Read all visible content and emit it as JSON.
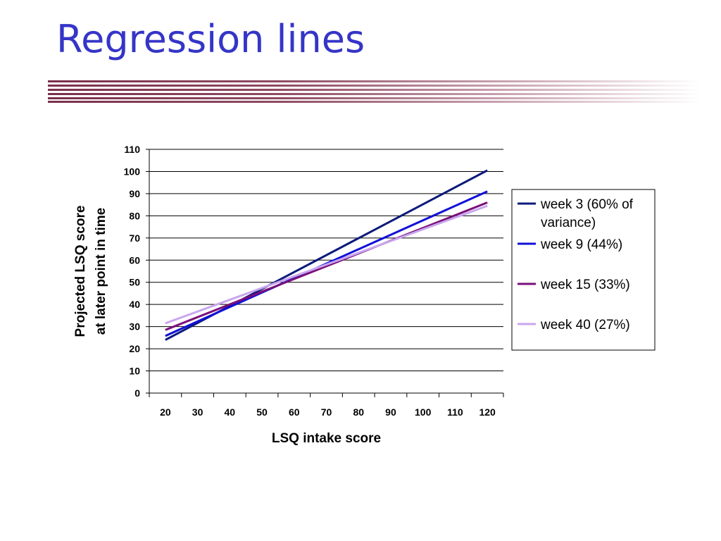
{
  "slide": {
    "title": "Regression lines",
    "title_color": "#3535c8",
    "rule_color": "#7a2f4a"
  },
  "chart_data": {
    "type": "line",
    "title": "",
    "xlabel": "LSQ intake score",
    "ylabel_lines": [
      "Projected LSQ score",
      "at later point in time"
    ],
    "x_categories": [
      20,
      30,
      40,
      50,
      60,
      70,
      80,
      90,
      100,
      110,
      120
    ],
    "y_ticks": [
      0,
      10,
      20,
      30,
      40,
      50,
      60,
      70,
      80,
      90,
      100,
      110
    ],
    "ylim": [
      0,
      110
    ],
    "grid": "horizontal",
    "legend_position": "right",
    "series": [
      {
        "name": "week 3 (60% of variance)",
        "legend_lines": [
          "week 3 (60% of",
          "variance)"
        ],
        "color": "#0b1a7a",
        "x": [
          20,
          120
        ],
        "y": [
          24,
          100.5
        ]
      },
      {
        "name": "week 9 (44%)",
        "legend_lines": [
          "week 9 (44%)"
        ],
        "color": "#1010d8",
        "x": [
          20,
          120
        ],
        "y": [
          25.8,
          91
        ]
      },
      {
        "name": "week 15 (33%)",
        "legend_lines": [
          "week 15 (33%)"
        ],
        "color": "#7a0f7a",
        "x": [
          20,
          120
        ],
        "y": [
          28.5,
          86
        ]
      },
      {
        "name": "week 40 (27%)",
        "legend_lines": [
          "week 40 (27%)"
        ],
        "color": "#c8a6ee",
        "x": [
          20,
          120
        ],
        "y": [
          31.5,
          84.5
        ]
      }
    ]
  }
}
